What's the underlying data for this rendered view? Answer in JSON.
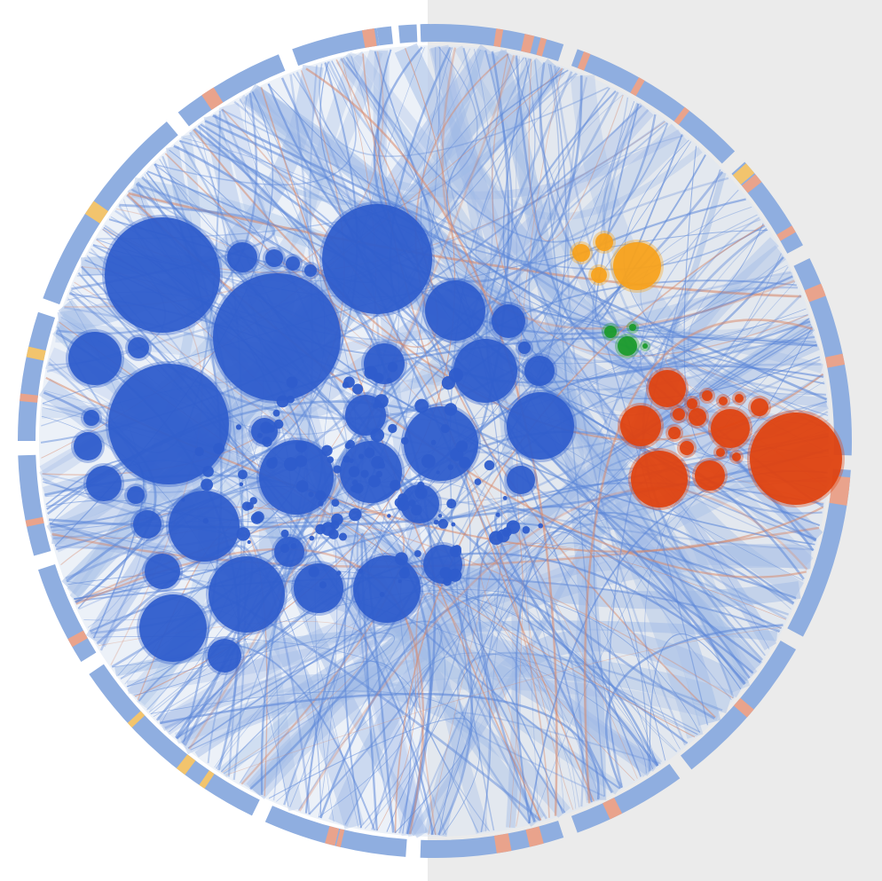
{
  "colors": {
    "background_left": "#ffffff",
    "background_right": "#ebebeb",
    "disc_fill": "#dde6f2",
    "ring_blue": "#8faee0",
    "ring_salmon": "#e9a38c",
    "ring_gold": "#f2c46d",
    "edge_blue": "#5b86d8",
    "edge_salmon": "#d88a6c",
    "bundle_blue": "#9fb9e6",
    "cluster_blue": "#2f5ccc",
    "cluster_orange": "#f7a21b",
    "cluster_green": "#1a9a2a",
    "cluster_red": "#e0420f"
  },
  "clusters": [
    {
      "name": "blue",
      "color": "#2f5ccc",
      "node_count_visible": "many"
    },
    {
      "name": "orange",
      "color": "#f7a21b",
      "node_count_visible": 4
    },
    {
      "name": "green",
      "color": "#1a9a2a",
      "node_count_visible": 4
    },
    {
      "name": "red",
      "color": "#e0420f",
      "node_count_visible": "many"
    }
  ],
  "ring": {
    "segment_count": 16,
    "accent_colors": [
      "#e9a38c",
      "#f2c46d"
    ]
  }
}
